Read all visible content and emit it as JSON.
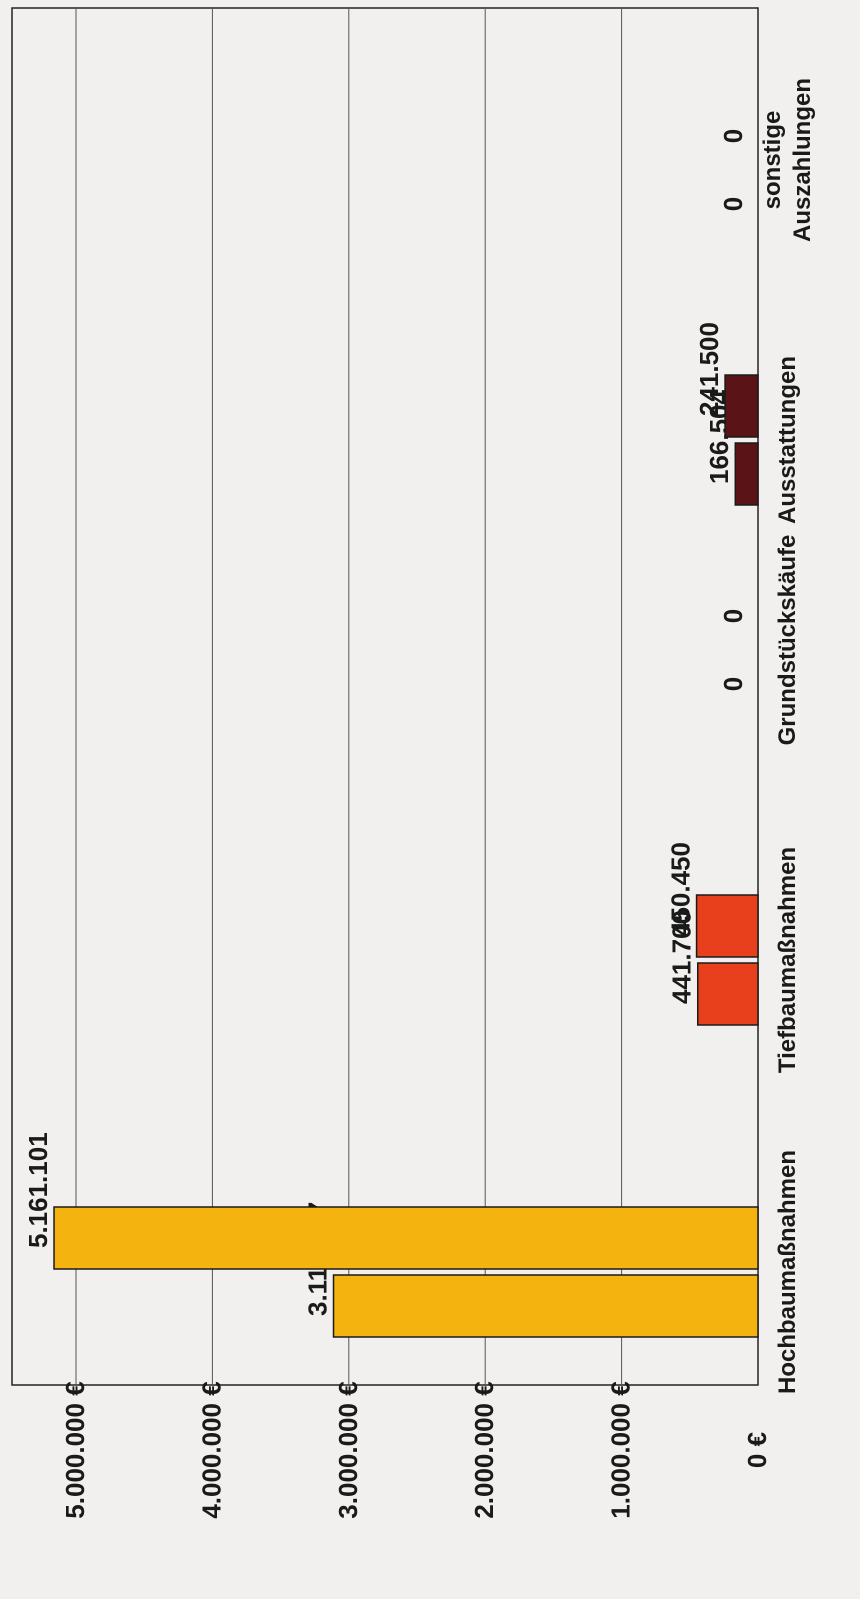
{
  "chart_data": {
    "type": "bar",
    "orientation": "rotated-90",
    "categories": [
      "Hochbaumaßnahmen",
      "Tiefbaumaßnahmen",
      "Grundstückskäufe",
      "Ausstattungen",
      "sonstige Auszahlungen"
    ],
    "series": [
      {
        "color": "#f5b30f",
        "values": [
          3112057,
          441700,
          0,
          166504,
          0
        ]
      },
      {
        "color": "#e8401c",
        "values": [
          5161101,
          450450,
          0,
          241500,
          0
        ]
      }
    ],
    "category_colors": [
      "#f5b30f",
      "#e8401c",
      "#e8401c",
      "#5a1418",
      "#5a1418"
    ],
    "value_labels": [
      [
        "3.112.057",
        "5.161.101"
      ],
      [
        "441.700",
        "450.450"
      ],
      [
        "0",
        "0"
      ],
      [
        "166.504",
        "241.500"
      ],
      [
        "0",
        "0"
      ]
    ],
    "y_ticks": [
      0,
      1000000,
      2000000,
      3000000,
      4000000,
      5000000
    ],
    "y_tick_labels": [
      "0 €",
      "1.000.000 €",
      "2.000.000 €",
      "3.000.000 €",
      "4.000.000 €",
      "5.000.000 €"
    ],
    "ylim": [
      0,
      5500000
    ],
    "grid": true,
    "legend": "none",
    "title": "",
    "xlabel": "",
    "ylabel": ""
  }
}
